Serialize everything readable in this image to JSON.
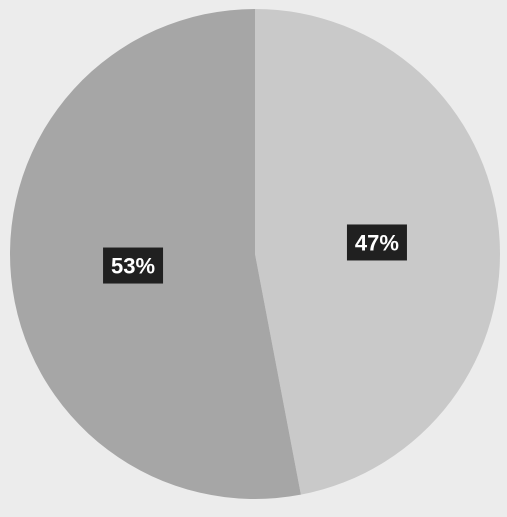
{
  "chart_data": {
    "type": "pie",
    "title": "",
    "start": "top",
    "direction": "clockwise",
    "slices": [
      {
        "label": "47%",
        "value": 47,
        "color": "#c9c9c9"
      },
      {
        "label": "53%",
        "value": 53,
        "color": "#a6a6a6"
      }
    ],
    "legend": "none",
    "background_color": "#ececec"
  }
}
